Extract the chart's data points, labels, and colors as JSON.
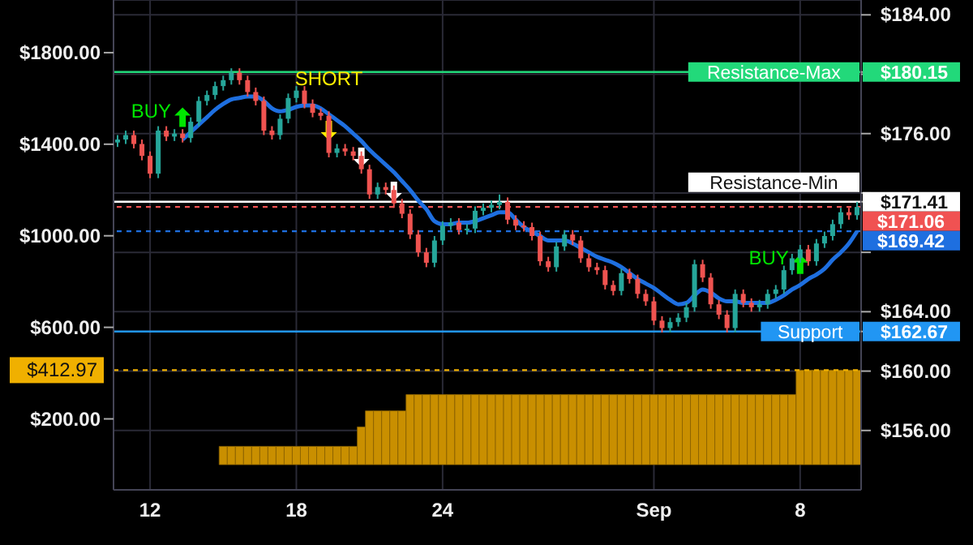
{
  "chart_data": {
    "type": "candlestick",
    "categories": [
      null,
      null,
      null,
      null,
      "12",
      null,
      null,
      null,
      null,
      null,
      null,
      null,
      null,
      null,
      null,
      null,
      null,
      null,
      null,
      null,
      null,
      null,
      "18",
      null,
      null,
      null,
      null,
      null,
      null,
      null,
      null,
      null,
      null,
      null,
      null,
      null,
      null,
      null,
      null,
      null,
      "24",
      null,
      null,
      null,
      null,
      null,
      null,
      null,
      null,
      null,
      null,
      null,
      null,
      null,
      null,
      null,
      null,
      null,
      null,
      null,
      null,
      null,
      null,
      null,
      null,
      null,
      "Sep",
      null,
      null,
      null,
      null,
      null,
      null,
      null,
      null,
      null,
      null,
      null,
      null,
      null,
      null,
      null,
      null,
      null,
      "8",
      null,
      null,
      null,
      null,
      null,
      null,
      null
    ],
    "series": [
      {
        "type": "bar",
        "color": "#c98f00",
        "values": [
          0,
          0,
          0,
          0,
          0,
          0,
          0,
          0,
          0,
          0,
          0,
          0,
          0,
          80,
          80,
          80,
          80,
          80,
          80,
          80,
          80,
          80,
          80,
          80,
          80,
          80,
          80,
          80,
          80,
          80,
          165,
          235,
          235,
          235,
          235,
          235,
          306,
          306,
          306,
          306,
          306,
          306,
          306,
          306,
          306,
          306,
          306,
          306,
          306,
          306,
          306,
          306,
          306,
          306,
          306,
          306,
          306,
          306,
          306,
          306,
          306,
          306,
          306,
          306,
          306,
          306,
          306,
          306,
          306,
          306,
          306,
          306,
          306,
          306,
          306,
          306,
          306,
          306,
          306,
          306,
          306,
          306,
          306,
          306,
          412.97,
          412.97,
          412.97,
          412.97,
          412.97,
          412.97,
          412.97,
          412.97
        ]
      },
      {
        "axis": "y2",
        "ohlc": [
          [
            175.4,
            175.9,
            175.1,
            175.6
          ],
          [
            175.6,
            176.2,
            175.3,
            175.9
          ],
          [
            175.9,
            176.2,
            175.0,
            175.3
          ],
          [
            175.3,
            175.6,
            174.2,
            174.5
          ],
          [
            174.5,
            174.8,
            173.0,
            173.3
          ],
          [
            173.3,
            176.5,
            173.0,
            176.2
          ],
          [
            176.2,
            176.5,
            175.5,
            175.8
          ],
          [
            175.8,
            176.3,
            175.5,
            176.0
          ],
          [
            176.0,
            176.3,
            175.4,
            175.7
          ],
          [
            175.7,
            177.1,
            175.4,
            176.8
          ],
          [
            176.8,
            178.5,
            176.5,
            178.2
          ],
          [
            178.2,
            178.9,
            177.9,
            178.6
          ],
          [
            178.6,
            179.5,
            178.3,
            179.2
          ],
          [
            179.2,
            179.9,
            178.9,
            179.6
          ],
          [
            179.6,
            180.4,
            179.3,
            180.1
          ],
          [
            180.1,
            180.4,
            179.3,
            179.6
          ],
          [
            179.6,
            179.9,
            178.5,
            178.8
          ],
          [
            178.8,
            179.1,
            177.9,
            178.2
          ],
          [
            178.2,
            178.5,
            175.9,
            176.2
          ],
          [
            176.2,
            176.5,
            175.6,
            175.9
          ],
          [
            175.9,
            177.3,
            175.6,
            177.0
          ],
          [
            177.0,
            178.7,
            176.7,
            178.4
          ],
          [
            178.4,
            179.2,
            178.1,
            178.9
          ],
          [
            178.9,
            179.2,
            177.7,
            178.0
          ],
          [
            178.0,
            178.3,
            177.1,
            177.4
          ],
          [
            177.4,
            177.7,
            176.9,
            177.2
          ],
          [
            177.2,
            177.5,
            174.4,
            174.7
          ],
          [
            174.7,
            175.3,
            174.4,
            175.0
          ],
          [
            175.0,
            175.3,
            174.5,
            174.8
          ],
          [
            174.8,
            175.1,
            174.2,
            174.5
          ],
          [
            174.5,
            174.8,
            173.3,
            173.6
          ],
          [
            173.6,
            173.9,
            171.6,
            171.9
          ],
          [
            171.9,
            172.7,
            171.6,
            172.4
          ],
          [
            172.4,
            172.7,
            171.9,
            172.2
          ],
          [
            172.2,
            172.5,
            171.0,
            171.3
          ],
          [
            171.3,
            171.6,
            170.3,
            170.6
          ],
          [
            170.6,
            170.9,
            168.9,
            169.2
          ],
          [
            169.2,
            169.5,
            167.7,
            168.0
          ],
          [
            168.0,
            168.3,
            167.0,
            167.3
          ],
          [
            167.3,
            169.1,
            167.0,
            168.8
          ],
          [
            168.8,
            170.1,
            168.5,
            169.8
          ],
          [
            169.8,
            170.3,
            169.5,
            170.0
          ],
          [
            170.0,
            170.3,
            169.2,
            169.5
          ],
          [
            169.5,
            169.9,
            169.2,
            169.6
          ],
          [
            169.6,
            171.1,
            169.3,
            170.8
          ],
          [
            170.8,
            171.3,
            170.5,
            171.0
          ],
          [
            171.0,
            171.5,
            170.7,
            171.2
          ],
          [
            171.2,
            171.9,
            170.9,
            171.4
          ],
          [
            171.4,
            171.7,
            169.9,
            170.2
          ],
          [
            170.2,
            170.5,
            169.5,
            169.8
          ],
          [
            169.8,
            170.1,
            169.4,
            169.7
          ],
          [
            169.7,
            170.0,
            168.8,
            169.1
          ],
          [
            169.1,
            169.4,
            167.1,
            167.4
          ],
          [
            167.4,
            167.7,
            166.7,
            167.0
          ],
          [
            167.0,
            168.7,
            166.7,
            168.4
          ],
          [
            168.4,
            169.5,
            168.1,
            169.2
          ],
          [
            169.2,
            169.5,
            168.5,
            168.8
          ],
          [
            168.8,
            169.1,
            167.3,
            167.6
          ],
          [
            167.6,
            167.9,
            166.7,
            167.0
          ],
          [
            167.0,
            167.3,
            166.5,
            166.8
          ],
          [
            166.8,
            167.1,
            165.5,
            165.8
          ],
          [
            165.8,
            166.1,
            165.1,
            165.4
          ],
          [
            165.4,
            166.9,
            165.1,
            166.6
          ],
          [
            166.6,
            166.9,
            165.9,
            166.2
          ],
          [
            166.2,
            166.5,
            164.9,
            165.2
          ],
          [
            165.2,
            165.5,
            164.4,
            164.7
          ],
          [
            164.7,
            165.0,
            163.1,
            163.4
          ],
          [
            163.4,
            163.7,
            162.6,
            162.9
          ],
          [
            162.9,
            163.6,
            162.6,
            163.3
          ],
          [
            163.3,
            163.9,
            163.0,
            163.6
          ],
          [
            163.6,
            164.6,
            163.3,
            164.3
          ],
          [
            164.3,
            167.5,
            164.0,
            167.2
          ],
          [
            167.2,
            167.5,
            166.0,
            166.3
          ],
          [
            166.3,
            166.6,
            164.2,
            164.5
          ],
          [
            164.5,
            164.8,
            163.5,
            163.8
          ],
          [
            163.8,
            164.1,
            162.6,
            162.9
          ],
          [
            162.9,
            165.5,
            162.6,
            165.2
          ],
          [
            165.2,
            165.5,
            164.3,
            164.6
          ],
          [
            164.6,
            164.9,
            164.0,
            164.3
          ],
          [
            164.3,
            164.8,
            164.0,
            164.5
          ],
          [
            164.5,
            165.5,
            164.2,
            165.2
          ],
          [
            165.2,
            165.8,
            164.9,
            165.5
          ],
          [
            165.5,
            167.1,
            165.2,
            166.8
          ],
          [
            166.8,
            167.9,
            166.5,
            167.6
          ],
          [
            167.6,
            168.5,
            167.3,
            168.2
          ],
          [
            168.2,
            168.5,
            167.1,
            167.4
          ],
          [
            167.4,
            168.9,
            167.1,
            168.6
          ],
          [
            168.6,
            169.4,
            168.3,
            169.1
          ],
          [
            169.1,
            170.2,
            168.8,
            169.9
          ],
          [
            169.9,
            171.0,
            169.6,
            170.7
          ],
          [
            170.7,
            171.0,
            170.2,
            170.5
          ],
          [
            170.5,
            171.4,
            170.2,
            171.06
          ]
        ]
      },
      {
        "type": "line",
        "axis": "y2",
        "color": "#1e6fe0",
        "values": [
          null,
          null,
          null,
          null,
          null,
          null,
          null,
          null,
          175.6,
          176.1,
          176.6,
          177.1,
          177.6,
          178.0,
          178.3,
          178.4,
          178.5,
          178.5,
          178.2,
          177.7,
          177.5,
          177.6,
          177.8,
          177.9,
          177.9,
          177.7,
          177.3,
          176.9,
          176.5,
          176.0,
          175.5,
          174.9,
          174.4,
          173.9,
          173.4,
          172.8,
          172.2,
          171.5,
          170.9,
          170.1,
          169.9,
          169.9,
          170.0,
          170.0,
          170.1,
          170.3,
          170.5,
          170.7,
          170.7,
          170.2,
          169.7,
          169.4,
          169.1,
          168.8,
          168.8,
          168.8,
          168.6,
          168.3,
          168.0,
          167.7,
          167.5,
          167.3,
          167.0,
          166.6,
          166.2,
          165.9,
          165.6,
          165.2,
          164.8,
          164.5,
          164.6,
          165.1,
          165.5,
          165.3,
          164.9,
          164.7,
          164.7,
          164.6,
          164.6,
          164.6,
          164.6,
          164.8,
          165.1,
          165.5,
          165.8,
          166.2,
          166.5,
          166.9,
          167.5,
          168.0,
          168.6,
          169.42
        ]
      },
      {
        "type": "scatter",
        "axis": "y2",
        "name": "BUY",
        "color": "#00e600",
        "marker": "triangle",
        "values": [
          null,
          null,
          null,
          null,
          null,
          null,
          null,
          null,
          177.1,
          null,
          null,
          null,
          null,
          null,
          null,
          null,
          null,
          null,
          null,
          null,
          null,
          null,
          null,
          null,
          null,
          null,
          null,
          null,
          null,
          null,
          null,
          null,
          null,
          null,
          null,
          null,
          null,
          null,
          null,
          null,
          null,
          null,
          null,
          null,
          null,
          null,
          null,
          null,
          null,
          null,
          null,
          null,
          null,
          null,
          null,
          null,
          null,
          null,
          null,
          null,
          null,
          null,
          null,
          null,
          null,
          null,
          null,
          null,
          null,
          null,
          null,
          null,
          null,
          null,
          null,
          null,
          null,
          null,
          null,
          null,
          null,
          null,
          null,
          null,
          167.2,
          null,
          null,
          null,
          null,
          null,
          null,
          null
        ]
      },
      {
        "type": "scatter",
        "axis": "y2",
        "name": "SHORT",
        "color": "#ffee00",
        "marker": "triangle",
        "values": [
          null,
          null,
          null,
          null,
          null,
          null,
          null,
          null,
          null,
          null,
          null,
          null,
          null,
          null,
          null,
          null,
          null,
          null,
          null,
          null,
          null,
          null,
          null,
          null,
          null,
          null,
          176.2,
          null,
          null,
          null,
          null,
          null,
          null,
          null,
          null,
          null,
          null,
          null,
          null,
          null,
          null,
          null,
          null,
          null,
          null,
          null,
          null,
          null,
          null,
          null,
          null,
          null,
          null,
          null,
          null,
          null,
          null,
          null,
          null,
          null,
          null,
          null,
          null,
          null,
          null,
          null,
          null,
          null,
          null,
          null,
          null,
          null,
          null,
          null,
          null,
          null,
          null,
          null,
          null,
          null,
          null,
          null,
          null,
          null,
          null,
          null,
          null,
          null,
          null,
          null,
          null,
          null
        ]
      },
      {
        "type": "scatter",
        "axis": "y2",
        "color": "#ffffff",
        "marker": "triangle",
        "values": [
          null,
          null,
          null,
          null,
          null,
          null,
          null,
          null,
          null,
          null,
          null,
          null,
          null,
          null,
          null,
          null,
          null,
          null,
          null,
          null,
          null,
          null,
          null,
          null,
          null,
          null,
          null,
          null,
          null,
          null,
          174.4,
          null,
          null,
          null,
          172.1,
          null,
          null,
          null,
          null,
          null,
          null,
          null,
          null,
          null,
          null,
          null,
          null,
          null,
          null,
          null,
          null,
          null,
          null,
          null,
          null,
          null,
          null,
          null,
          null,
          null,
          null,
          null,
          null,
          null,
          null,
          null,
          null,
          null,
          null,
          null,
          null,
          null,
          null,
          null,
          null,
          null,
          null,
          null,
          null,
          null,
          null,
          null,
          null,
          null,
          null,
          null,
          null,
          null,
          null,
          null,
          null,
          null
        ]
      }
    ],
    "ylim": [
      -110,
      2030
    ],
    "yticks": [
      {
        "value": 200,
        "label": "$200.00"
      },
      {
        "value": 600,
        "label": "$600.00"
      },
      {
        "value": 1000,
        "label": "$1000.00"
      },
      {
        "value": 1400,
        "label": "$1400.00"
      },
      {
        "value": 1800,
        "label": "$1800.00"
      }
    ],
    "y2lim": [
      152,
      185
    ],
    "y2ticks": [
      {
        "value": 156,
        "label": "$156.00"
      },
      {
        "value": 160,
        "label": "$160.00"
      },
      {
        "value": 162.67,
        "label": "$162.67"
      },
      {
        "value": 164,
        "label": "$164.00"
      },
      {
        "value": 168,
        "label": null
      },
      {
        "value": 171.41,
        "label": "$171.41"
      },
      {
        "value": 172,
        "label": null
      },
      {
        "value": 176,
        "label": "$176.00"
      },
      {
        "value": 180,
        "label": null
      },
      {
        "value": 180.15,
        "label": "$180.15"
      },
      {
        "value": 184,
        "label": "$184.00"
      }
    ],
    "ref_lines": [
      {
        "axis": "y2",
        "value": 180.15,
        "label": "Resistance-Max",
        "color": "#22d97a"
      },
      {
        "axis": "y2",
        "value": 171.41,
        "label": "Resistance-Min",
        "color": "#ffffff"
      },
      {
        "axis": "y2",
        "value": 171.06,
        "label": "$171.06",
        "color": "#f05252",
        "line_style": "dashed"
      },
      {
        "axis": "y2",
        "value": 169.42,
        "label": "$169.42",
        "color": "#1e6fe0",
        "line_style": "dashed"
      },
      {
        "axis": "y2",
        "value": 162.67,
        "label": "Support",
        "color": "#2196f3"
      },
      {
        "axis": "y",
        "value": 412.97,
        "label": "$412.97",
        "color": "#f0b000",
        "line_style": "dashed"
      }
    ],
    "grid": true
  }
}
